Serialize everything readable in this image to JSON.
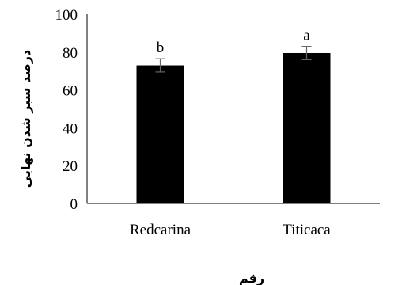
{
  "chart_data": {
    "type": "bar",
    "categories": [
      "Redcarina",
      "Titicaca"
    ],
    "values": [
      73,
      79.5
    ],
    "errors": [
      3.5,
      3.5
    ],
    "significance_letters": [
      "b",
      "a"
    ],
    "xlabel": "رقم",
    "ylabel": "درصد سبز شدن نهایی",
    "ylim": [
      0,
      100
    ],
    "yticks": [
      0,
      20,
      40,
      60,
      80,
      100
    ],
    "grid": false,
    "bar_color": "#000000"
  }
}
